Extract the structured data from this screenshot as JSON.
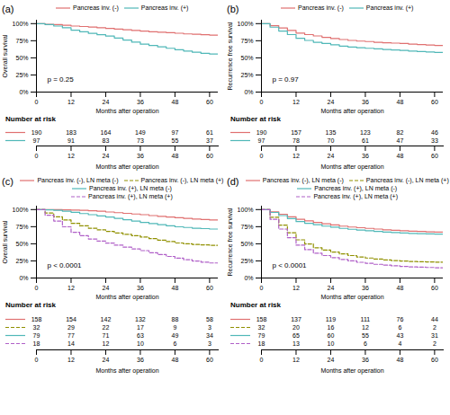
{
  "chart_data": [
    {
      "type": "step",
      "title": "(a)",
      "xlabel": "Months after operation",
      "ylabel": "Overall survival",
      "annotations": [
        "p = 0.25"
      ],
      "legend": "top",
      "grid": false,
      "at_risk_title": "Number at risk",
      "xlim": [
        0,
        63
      ],
      "ylim": [
        0,
        1.05
      ],
      "xticks": [
        0,
        12,
        24,
        36,
        48,
        60
      ],
      "yticks": [
        {
          "value": 0,
          "label": "0%"
        },
        {
          "value": 0.25,
          "label": "25%"
        },
        {
          "value": 0.5,
          "label": "50%"
        },
        {
          "value": 0.75,
          "label": "75%"
        },
        {
          "value": 1.0,
          "label": "100%"
        }
      ],
      "x": [
        0,
        3,
        6,
        9,
        12,
        15,
        18,
        21,
        24,
        27,
        30,
        33,
        36,
        39,
        42,
        45,
        48,
        51,
        54,
        57,
        60,
        63
      ],
      "series": [
        {
          "name": "Pancreas inv. (-)",
          "color": "#e07070",
          "line_style": "solid",
          "values": [
            1.0,
            0.99,
            0.985,
            0.975,
            0.965,
            0.958,
            0.95,
            0.94,
            0.93,
            0.92,
            0.91,
            0.9,
            0.89,
            0.882,
            0.875,
            0.868,
            0.86,
            0.85,
            0.845,
            0.838,
            0.832,
            0.828
          ],
          "at_risk": [
            190,
            183,
            164,
            149,
            97,
            61
          ]
        },
        {
          "name": "Pancreas inv. (+)",
          "color": "#50b8b8",
          "line_style": "solid",
          "values": [
            1.0,
            0.985,
            0.965,
            0.94,
            0.905,
            0.882,
            0.858,
            0.838,
            0.818,
            0.79,
            0.76,
            0.73,
            0.7,
            0.68,
            0.66,
            0.64,
            0.618,
            0.6,
            0.582,
            0.565,
            0.555,
            0.55
          ],
          "at_risk": [
            97,
            91,
            83,
            73,
            55,
            37
          ]
        }
      ]
    },
    {
      "type": "step",
      "title": "(b)",
      "xlabel": "Months after operation",
      "ylabel": "Recurrence free survival",
      "annotations": [
        "p = 0.97"
      ],
      "legend": "top",
      "grid": false,
      "at_risk_title": "Number at risk",
      "xlim": [
        0,
        63
      ],
      "ylim": [
        0,
        1.05
      ],
      "xticks": [
        0,
        12,
        24,
        36,
        48,
        60
      ],
      "yticks": [
        {
          "value": 0,
          "label": "0%"
        },
        {
          "value": 0.25,
          "label": "25%"
        },
        {
          "value": 0.5,
          "label": "50%"
        },
        {
          "value": 0.75,
          "label": "75%"
        },
        {
          "value": 1.0,
          "label": "100%"
        }
      ],
      "x": [
        0,
        3,
        6,
        9,
        12,
        15,
        18,
        21,
        24,
        27,
        30,
        33,
        36,
        39,
        42,
        45,
        48,
        51,
        54,
        57,
        60,
        63
      ],
      "series": [
        {
          "name": "Pancreas inv. (-)",
          "color": "#e07070",
          "line_style": "solid",
          "values": [
            1.0,
            0.97,
            0.938,
            0.9,
            0.862,
            0.84,
            0.82,
            0.8,
            0.782,
            0.768,
            0.755,
            0.745,
            0.738,
            0.728,
            0.72,
            0.715,
            0.71,
            0.7,
            0.695,
            0.688,
            0.682,
            0.68
          ],
          "at_risk": [
            190,
            157,
            135,
            123,
            82,
            46
          ]
        },
        {
          "name": "Pancreas inv. (+)",
          "color": "#50b8b8",
          "line_style": "solid",
          "values": [
            1.0,
            0.948,
            0.892,
            0.84,
            0.785,
            0.755,
            0.728,
            0.71,
            0.692,
            0.672,
            0.658,
            0.648,
            0.64,
            0.632,
            0.622,
            0.615,
            0.608,
            0.598,
            0.592,
            0.586,
            0.58,
            0.578
          ],
          "at_risk": [
            97,
            78,
            70,
            61,
            47,
            33
          ]
        }
      ]
    },
    {
      "type": "step",
      "title": "(c)",
      "xlabel": "Months after operation",
      "ylabel": "Overall survival",
      "annotations": [
        "p < 0.0001"
      ],
      "legend": "top",
      "grid": false,
      "at_risk_title": "Number at risk",
      "xlim": [
        0,
        63
      ],
      "ylim": [
        0,
        1.05
      ],
      "xticks": [
        0,
        12,
        24,
        36,
        48,
        60
      ],
      "yticks": [
        {
          "value": 0,
          "label": "0%"
        },
        {
          "value": 0.25,
          "label": "25%"
        },
        {
          "value": 0.5,
          "label": "50%"
        },
        {
          "value": 0.75,
          "label": "75%"
        },
        {
          "value": 1.0,
          "label": "100%"
        }
      ],
      "x": [
        0,
        3,
        6,
        9,
        12,
        15,
        18,
        21,
        24,
        27,
        30,
        33,
        36,
        39,
        42,
        45,
        48,
        51,
        54,
        57,
        60,
        63
      ],
      "series": [
        {
          "name": "Pancreas inv. (-), LN meta (-)",
          "color": "#e07070",
          "line_style": "solid",
          "values": [
            1.0,
            1.0,
            0.998,
            0.995,
            0.992,
            0.988,
            0.982,
            0.975,
            0.965,
            0.955,
            0.945,
            0.935,
            0.925,
            0.912,
            0.9,
            0.89,
            0.88,
            0.87,
            0.862,
            0.855,
            0.848,
            0.842
          ],
          "at_risk": [
            158,
            154,
            142,
            132,
            88,
            58
          ]
        },
        {
          "name": "Pancreas inv. (-), LN meta (+)",
          "color": "#909000",
          "line_style": "dashed",
          "values": [
            1.0,
            0.95,
            0.895,
            0.848,
            0.798,
            0.762,
            0.728,
            0.705,
            0.682,
            0.658,
            0.638,
            0.618,
            0.598,
            0.575,
            0.552,
            0.532,
            0.512,
            0.5,
            0.49,
            0.484,
            0.478,
            0.474
          ],
          "at_risk": [
            32,
            29,
            22,
            17,
            9,
            3
          ]
        },
        {
          "name": "Pancreas inv. (+), LN meta (-)",
          "color": "#50b8b8",
          "line_style": "solid",
          "values": [
            1.0,
            0.995,
            0.988,
            0.975,
            0.96,
            0.942,
            0.925,
            0.908,
            0.892,
            0.872,
            0.852,
            0.832,
            0.812,
            0.795,
            0.778,
            0.762,
            0.748,
            0.738,
            0.728,
            0.722,
            0.715,
            0.71
          ],
          "at_risk": [
            79,
            77,
            71,
            63,
            49,
            34
          ]
        },
        {
          "name": "Pancreas inv. (+), LN meta (+)",
          "color": "#b060c8",
          "line_style": "dashed",
          "values": [
            1.0,
            0.918,
            0.832,
            0.748,
            0.668,
            0.618,
            0.57,
            0.54,
            0.51,
            0.48,
            0.452,
            0.425,
            0.4,
            0.37,
            0.342,
            0.315,
            0.29,
            0.268,
            0.248,
            0.232,
            0.22,
            0.21
          ],
          "at_risk": [
            18,
            14,
            12,
            10,
            6,
            3
          ]
        }
      ]
    },
    {
      "type": "step",
      "title": "(d)",
      "xlabel": "Months after operation",
      "ylabel": "Recurrence free survival",
      "annotations": [
        "p < 0.0001"
      ],
      "legend": "top",
      "grid": false,
      "at_risk_title": "Number at risk",
      "xlim": [
        0,
        63
      ],
      "ylim": [
        0,
        1.05
      ],
      "xticks": [
        0,
        12,
        24,
        36,
        48,
        60
      ],
      "yticks": [
        {
          "value": 0,
          "label": "0%"
        },
        {
          "value": 0.25,
          "label": "25%"
        },
        {
          "value": 0.5,
          "label": "50%"
        },
        {
          "value": 0.75,
          "label": "75%"
        },
        {
          "value": 1.0,
          "label": "100%"
        }
      ],
      "x": [
        0,
        3,
        6,
        9,
        12,
        15,
        18,
        21,
        24,
        27,
        30,
        33,
        36,
        39,
        42,
        45,
        48,
        51,
        54,
        57,
        60,
        63
      ],
      "series": [
        {
          "name": "Pancreas inv. (-), LN meta (-)",
          "color": "#e07070",
          "line_style": "solid",
          "values": [
            1.0,
            0.968,
            0.932,
            0.895,
            0.858,
            0.835,
            0.812,
            0.792,
            0.775,
            0.758,
            0.745,
            0.735,
            0.725,
            0.715,
            0.705,
            0.698,
            0.692,
            0.685,
            0.68,
            0.675,
            0.67,
            0.668
          ],
          "at_risk": [
            158,
            137,
            119,
            111,
            76,
            44
          ]
        },
        {
          "name": "Pancreas inv. (-), LN meta (+)",
          "color": "#909000",
          "line_style": "dashed",
          "values": [
            1.0,
            0.888,
            0.772,
            0.662,
            0.558,
            0.498,
            0.442,
            0.408,
            0.378,
            0.352,
            0.328,
            0.308,
            0.292,
            0.278,
            0.265,
            0.255,
            0.248,
            0.242,
            0.238,
            0.235,
            0.232,
            0.23
          ],
          "at_risk": [
            32,
            20,
            16,
            12,
            6,
            2
          ]
        },
        {
          "name": "Pancreas inv. (+), LN meta (-)",
          "color": "#50b8b8",
          "line_style": "solid",
          "values": [
            1.0,
            0.958,
            0.912,
            0.868,
            0.825,
            0.8,
            0.778,
            0.758,
            0.742,
            0.725,
            0.712,
            0.7,
            0.692,
            0.682,
            0.672,
            0.665,
            0.658,
            0.652,
            0.648,
            0.645,
            0.642,
            0.64
          ],
          "at_risk": [
            79,
            65,
            60,
            55,
            43,
            31
          ]
        },
        {
          "name": "Pancreas inv. (+), LN meta (+)",
          "color": "#b060c8",
          "line_style": "dashed",
          "values": [
            1.0,
            0.858,
            0.715,
            0.59,
            0.48,
            0.415,
            0.362,
            0.328,
            0.298,
            0.272,
            0.25,
            0.23,
            0.215,
            0.2,
            0.188,
            0.178,
            0.17,
            0.162,
            0.158,
            0.154,
            0.15,
            0.148
          ],
          "at_risk": [
            18,
            13,
            10,
            6,
            4,
            2
          ]
        }
      ]
    }
  ]
}
